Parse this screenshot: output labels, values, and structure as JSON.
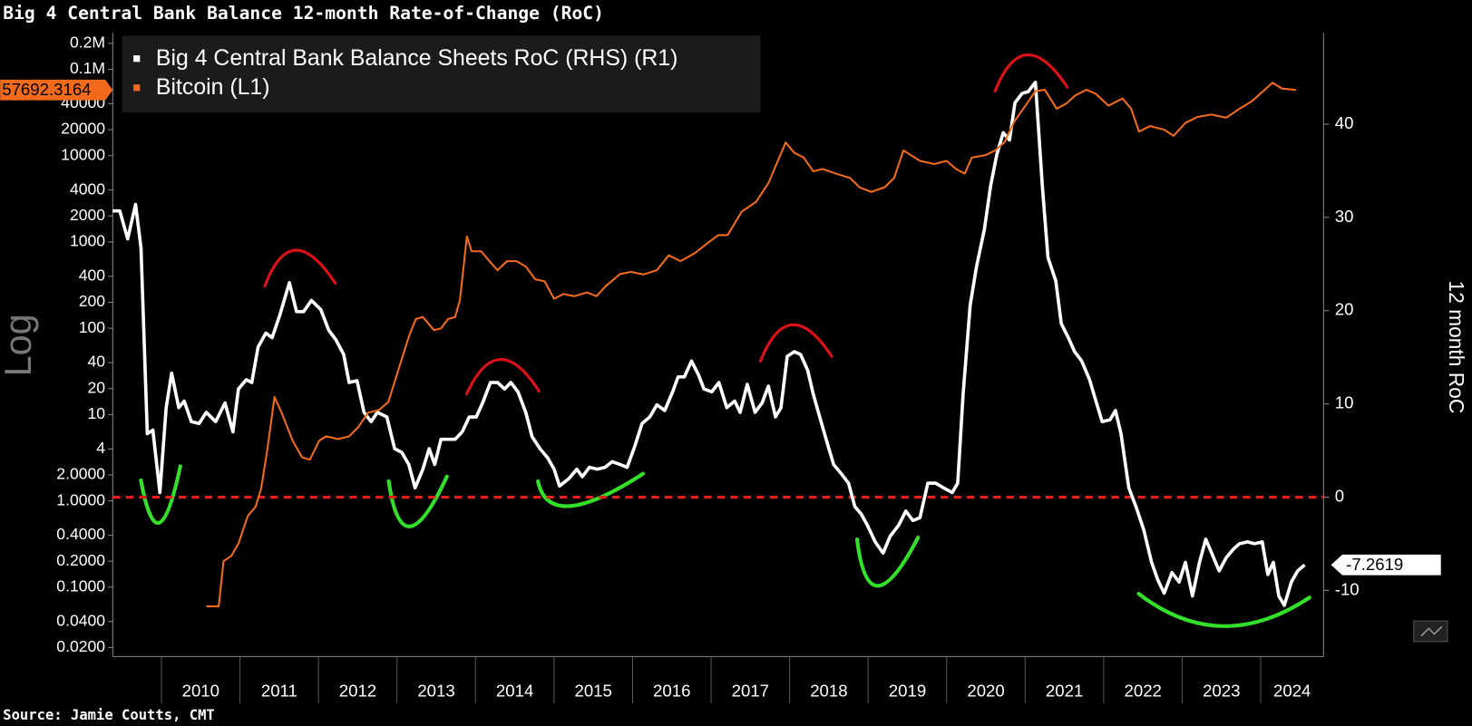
{
  "chart_data": {
    "type": "line",
    "title": "Big 4 Central Bank Balance 12-month Rate-of-Change (RoC)",
    "source": "Source: Jamie Coutts, CMT",
    "ylabel": "Log",
    "y2label": "12 month RoC",
    "log_y": true,
    "grid": false,
    "legend": "upper left",
    "xlim": [
      2009.38,
      2024.8
    ],
    "xticks": [
      2010,
      2011,
      2012,
      2013,
      2014,
      2015,
      2016,
      2017,
      2018,
      2019,
      2020,
      2021,
      2022,
      2023,
      2024
    ],
    "ylim": [
      0.0157,
      265000
    ],
    "yticks": [
      {
        "value": 200000,
        "label": "0.2M"
      },
      {
        "value": 100000,
        "label": "0.1M"
      },
      40000,
      20000,
      10000,
      4000,
      2000,
      1000,
      400,
      200,
      100,
      40,
      20,
      10,
      4,
      {
        "value": 2,
        "label": "2.0000"
      },
      {
        "value": 1,
        "label": "1.0000"
      },
      {
        "value": 0.4,
        "label": "0.4000"
      },
      {
        "value": 0.2,
        "label": "0.2000"
      },
      {
        "value": 0.1,
        "label": "0.1000"
      },
      {
        "value": 0.04,
        "label": "0.0400"
      },
      {
        "value": 0.02,
        "label": "0.0200"
      }
    ],
    "y2lim": [
      -17.1,
      49.8
    ],
    "y2ticks": [
      -10,
      0,
      10,
      20,
      30,
      40
    ],
    "reference_line": {
      "value": 0,
      "axis": "y2",
      "color": "#e8201c"
    },
    "series": [
      {
        "name": "Big 4 Central Bank Balance Sheets RoC (RHS) (R1)",
        "color": "#ffffff",
        "axis": "y2",
        "last_label": "-7.2619",
        "x": [
          2009.38,
          2009.47,
          2009.57,
          2009.67,
          2009.74,
          2009.82,
          2009.89,
          2009.98,
          2010.06,
          2010.13,
          2010.22,
          2010.29,
          2010.38,
          2010.48,
          2010.57,
          2010.69,
          2010.81,
          2010.91,
          2010.98,
          2011.08,
          2011.15,
          2011.23,
          2011.33,
          2011.41,
          2011.51,
          2011.63,
          2011.72,
          2011.81,
          2011.91,
          2012.03,
          2012.13,
          2012.22,
          2012.32,
          2012.39,
          2012.49,
          2012.58,
          2012.67,
          2012.75,
          2012.87,
          2012.97,
          2013.06,
          2013.15,
          2013.23,
          2013.33,
          2013.41,
          2013.48,
          2013.56,
          2013.66,
          2013.74,
          2013.83,
          2013.92,
          2014.01,
          2014.09,
          2014.19,
          2014.28,
          2014.37,
          2014.45,
          2014.54,
          2014.64,
          2014.72,
          2014.82,
          2014.92,
          2015.0,
          2015.07,
          2015.19,
          2015.29,
          2015.36,
          2015.45,
          2015.55,
          2015.65,
          2015.74,
          2015.84,
          2015.93,
          2016.03,
          2016.12,
          2016.22,
          2016.31,
          2016.41,
          2016.51,
          2016.58,
          2016.66,
          2016.75,
          2016.84,
          2016.91,
          2017.01,
          2017.1,
          2017.2,
          2017.3,
          2017.37,
          2017.46,
          2017.56,
          2017.65,
          2017.73,
          2017.82,
          2017.89,
          2017.97,
          2018.06,
          2018.14,
          2018.23,
          2018.3,
          2018.4,
          2018.49,
          2018.56,
          2018.66,
          2018.75,
          2018.83,
          2018.91,
          2018.99,
          2019.09,
          2019.19,
          2019.28,
          2019.39,
          2019.48,
          2019.57,
          2019.66,
          2019.76,
          2019.86,
          2019.96,
          2020.07,
          2020.14,
          2020.21,
          2020.3,
          2020.38,
          2020.48,
          2020.56,
          2020.64,
          2020.72,
          2020.8,
          2020.87,
          2020.96,
          2021.04,
          2021.13,
          2021.22,
          2021.29,
          2021.39,
          2021.46,
          2021.55,
          2021.63,
          2021.72,
          2021.82,
          2021.89,
          2021.98,
          2022.08,
          2022.15,
          2022.22,
          2022.32,
          2022.41,
          2022.51,
          2022.61,
          2022.69,
          2022.77,
          2022.87,
          2022.96,
          2023.04,
          2023.13,
          2023.22,
          2023.3,
          2023.4,
          2023.47,
          2023.56,
          2023.66,
          2023.73,
          2023.83,
          2023.92,
          2024.02,
          2024.09,
          2024.16,
          2024.23,
          2024.3,
          2024.39,
          2024.47,
          2024.56
        ],
        "values": [
          30.7,
          30.7,
          27.7,
          31.4,
          26.7,
          6.8,
          7.2,
          0.5,
          9.6,
          13.3,
          9.6,
          10.3,
          8.1,
          7.9,
          9.1,
          8.1,
          10.1,
          7.0,
          11.6,
          12.6,
          12.3,
          16.1,
          17.6,
          17.1,
          19.6,
          23.0,
          19.9,
          19.9,
          21.1,
          20.1,
          17.9,
          16.9,
          15.3,
          12.3,
          12.5,
          9.1,
          8.1,
          9.1,
          8.6,
          5.2,
          4.8,
          3.5,
          1.0,
          3.0,
          5.2,
          3.5,
          6.2,
          6.2,
          6.2,
          7.0,
          8.6,
          8.6,
          10.1,
          12.3,
          12.3,
          11.6,
          12.3,
          11.3,
          9.1,
          6.5,
          5.2,
          4.2,
          3.0,
          1.2,
          2.0,
          3.0,
          2.2,
          3.2,
          3.0,
          3.2,
          3.8,
          3.5,
          3.2,
          5.5,
          7.9,
          8.6,
          9.9,
          9.3,
          11.3,
          12.9,
          12.9,
          14.6,
          13.1,
          11.6,
          11.3,
          12.3,
          9.6,
          10.3,
          9.1,
          12.1,
          9.1,
          10.1,
          11.9,
          8.6,
          9.6,
          15.1,
          15.6,
          15.3,
          13.6,
          11.1,
          8.1,
          5.5,
          3.5,
          2.5,
          1.5,
          -1.0,
          -1.8,
          -3.0,
          -4.8,
          -6.0,
          -4.2,
          -3.0,
          -1.5,
          -2.5,
          -2.2,
          1.5,
          1.5,
          1.0,
          0.5,
          1.5,
          11.1,
          20.6,
          24.7,
          28.7,
          33.4,
          36.8,
          39.1,
          38.3,
          42.3,
          43.3,
          43.5,
          44.5,
          33.2,
          25.7,
          23.2,
          18.6,
          17.1,
          15.6,
          14.6,
          12.6,
          10.6,
          8.1,
          8.3,
          9.3,
          6.8,
          1.0,
          -1.0,
          -3.5,
          -7.0,
          -8.9,
          -10.3,
          -8.1,
          -9.1,
          -7.0,
          -10.6,
          -7.0,
          -4.5,
          -6.5,
          -7.9,
          -6.5,
          -5.5,
          -5.0,
          -4.8,
          -5.0,
          -4.8,
          -8.3,
          -7.0,
          -10.6,
          -11.6,
          -9.1,
          -7.9,
          -7.2619
        ]
      },
      {
        "name": "Bitcoin (L1)",
        "color": "#f26b1d",
        "axis": "y",
        "last_label": "57692.3164",
        "x": [
          2010.57,
          2010.73,
          2010.79,
          2010.89,
          2010.98,
          2011.1,
          2011.2,
          2011.27,
          2011.35,
          2011.44,
          2011.53,
          2011.67,
          2011.79,
          2011.89,
          2012.01,
          2012.1,
          2012.25,
          2012.39,
          2012.51,
          2012.63,
          2012.77,
          2012.89,
          2013.03,
          2013.15,
          2013.24,
          2013.33,
          2013.47,
          2013.56,
          2013.65,
          2013.74,
          2013.8,
          2013.89,
          2013.95,
          2014.07,
          2014.19,
          2014.28,
          2014.4,
          2014.52,
          2014.64,
          2014.76,
          2014.88,
          2015.0,
          2015.12,
          2015.26,
          2015.42,
          2015.54,
          2015.66,
          2015.84,
          2015.98,
          2016.14,
          2016.31,
          2016.46,
          2016.61,
          2016.79,
          2016.91,
          2017.09,
          2017.21,
          2017.39,
          2017.57,
          2017.73,
          2017.95,
          2018.06,
          2018.18,
          2018.3,
          2018.42,
          2018.59,
          2018.77,
          2018.89,
          2019.04,
          2019.21,
          2019.33,
          2019.45,
          2019.66,
          2019.84,
          2020.0,
          2020.12,
          2020.23,
          2020.32,
          2020.5,
          2020.62,
          2020.74,
          2020.86,
          2021.02,
          2021.13,
          2021.25,
          2021.4,
          2021.52,
          2021.64,
          2021.78,
          2021.9,
          2022.06,
          2022.24,
          2022.35,
          2022.45,
          2022.59,
          2022.77,
          2022.89,
          2023.04,
          2023.19,
          2023.37,
          2023.56,
          2023.73,
          2023.89,
          2024.15,
          2024.27,
          2024.45
        ],
        "values": [
          0.06,
          0.06,
          0.2,
          0.23,
          0.32,
          0.67,
          0.86,
          1.4,
          4,
          16,
          10.5,
          5,
          3.2,
          3,
          5,
          5.6,
          5.2,
          5.6,
          7.2,
          10.5,
          11.3,
          14,
          36,
          80,
          128,
          135,
          95,
          100,
          128,
          135,
          210,
          1160,
          780,
          780,
          580,
          470,
          600,
          600,
          520,
          370,
          350,
          220,
          250,
          235,
          260,
          235,
          310,
          425,
          450,
          420,
          470,
          700,
          600,
          740,
          900,
          1200,
          1200,
          2250,
          2900,
          4800,
          14200,
          10800,
          9500,
          6600,
          7000,
          6200,
          5500,
          4300,
          3800,
          4300,
          5500,
          11500,
          8700,
          8000,
          8700,
          7000,
          6200,
          9500,
          10200,
          11500,
          14500,
          24800,
          40000,
          56000,
          58000,
          35000,
          40000,
          50000,
          58000,
          52000,
          38000,
          46000,
          35000,
          19000,
          22000,
          20000,
          17000,
          24000,
          28000,
          30000,
          27500,
          35000,
          43000,
          70000,
          60000,
          57692.3164
        ]
      }
    ]
  }
}
